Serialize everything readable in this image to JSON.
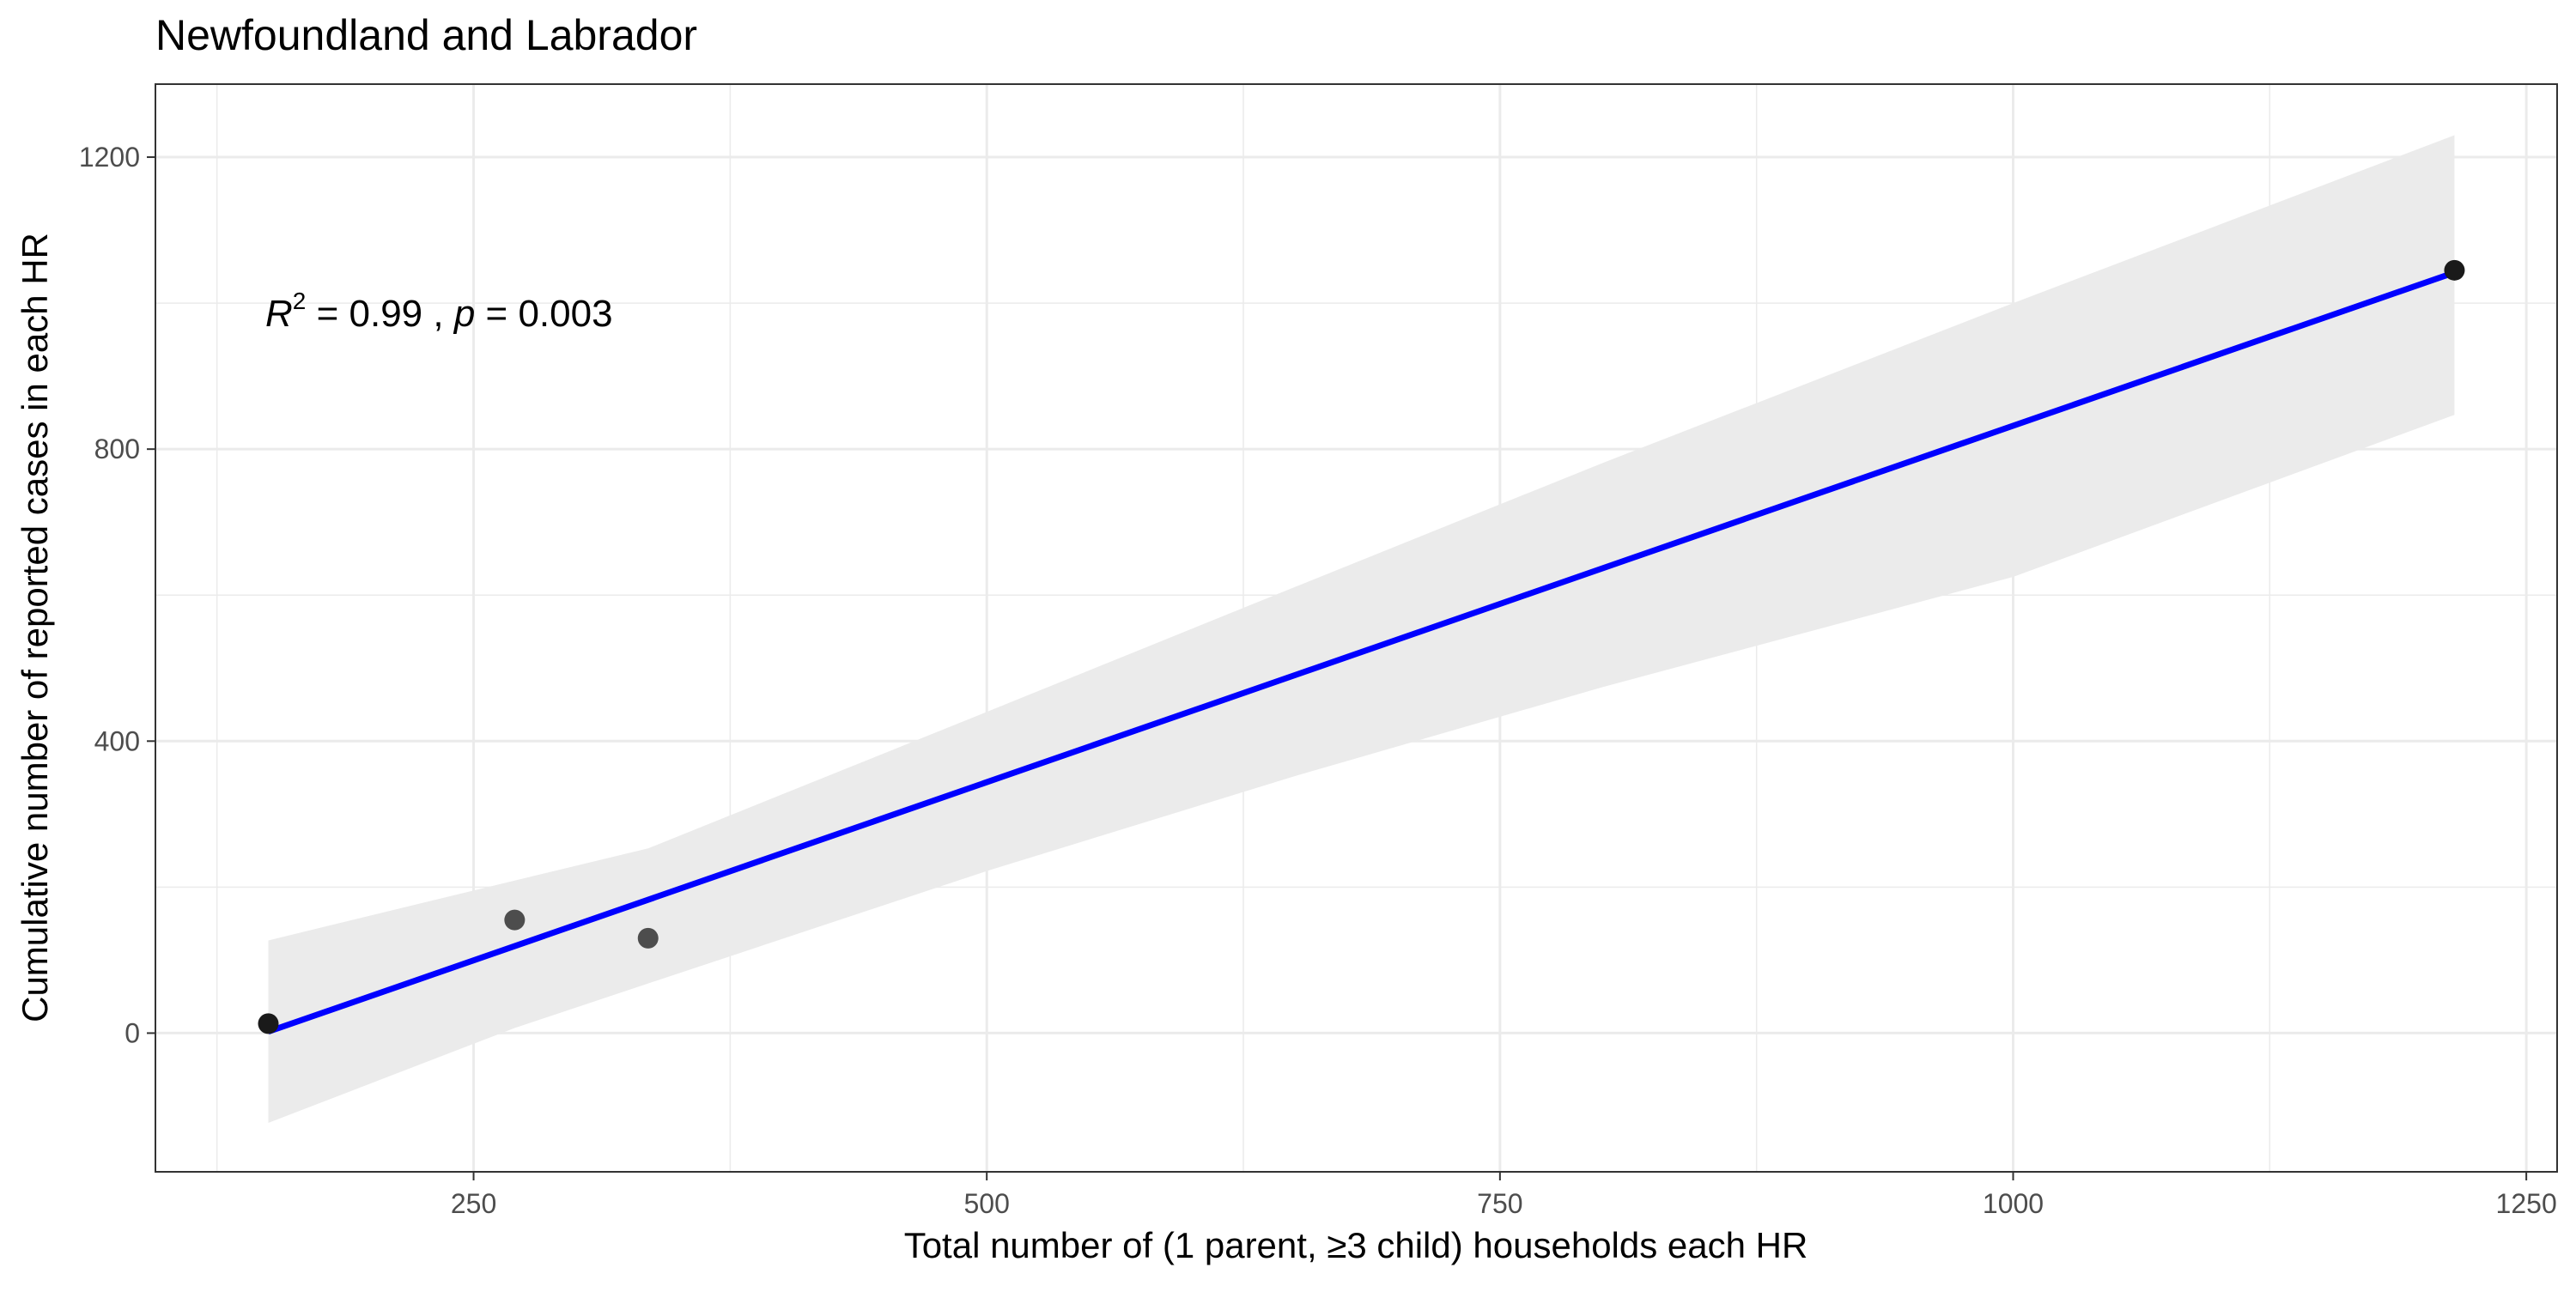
{
  "chart_data": {
    "type": "scatter",
    "title": "Newfoundland and Labrador",
    "xlabel": "Total number of (1 parent, ≥3 child) households each HR",
    "ylabel": "Cumulative number of reported cases in each HR",
    "xlim": [
      95,
      1265
    ],
    "ylim": [
      -190,
      1300
    ],
    "x_ticks": [
      250,
      500,
      750,
      1000,
      1250
    ],
    "y_ticks": [
      0,
      400,
      800,
      1200
    ],
    "x_tick_labels": [
      "250",
      "500",
      "750",
      "1000",
      "1250"
    ],
    "y_tick_labels": [
      "0",
      "400",
      "800",
      "1200"
    ],
    "grid": true,
    "points": [
      {
        "x": 150,
        "y": 13
      },
      {
        "x": 270,
        "y": 155
      },
      {
        "x": 335,
        "y": 130
      },
      {
        "x": 1215,
        "y": 1045
      }
    ],
    "fit_line": {
      "x": [
        150,
        1215
      ],
      "y": [
        2,
        1042
      ],
      "color": "#0000ff"
    },
    "confidence_band": {
      "x": [
        150,
        270,
        335,
        500,
        650,
        800,
        1000,
        1215
      ],
      "lower": [
        -123,
        7,
        68,
        222,
        352,
        474,
        625,
        847
      ],
      "upper": [
        127,
        209,
        253,
        440,
        611,
        781,
        1000,
        1230
      ],
      "color": "#ebebeb"
    },
    "annotation": {
      "r_symbol": "R",
      "r_exponent": "2",
      "r_text": " = 0.99 , ",
      "p_symbol": "p",
      "p_text": " = 0.003"
    },
    "colors": {
      "points": "#4d4d4d",
      "highlight_points": "#1a1a1a",
      "grid": "#ebebeb",
      "axis_text": "#4d4d4d",
      "panel_border": "#333333"
    }
  }
}
